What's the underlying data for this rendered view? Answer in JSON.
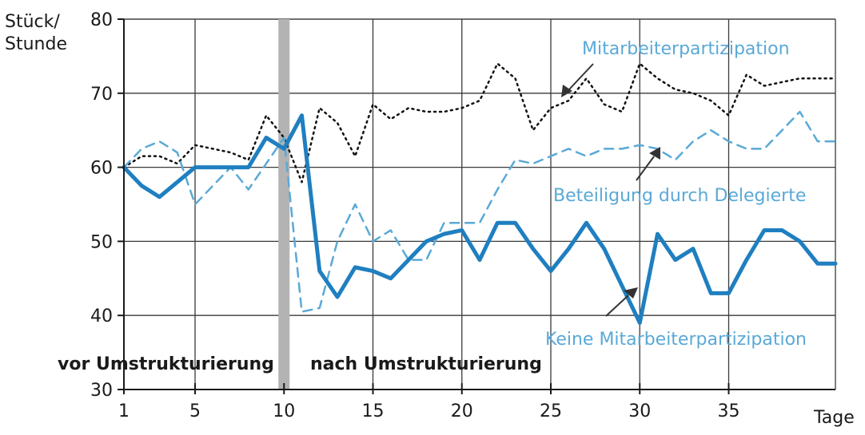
{
  "chart_data": {
    "type": "line",
    "ylabel": "Stück/ Stunde",
    "xlabel": "Tage",
    "xlim": [
      1,
      41
    ],
    "ylim": [
      30,
      80
    ],
    "xticks": [
      1,
      5,
      10,
      15,
      20,
      25,
      30,
      35
    ],
    "yticks": [
      30,
      40,
      50,
      60,
      70,
      80
    ],
    "grid": true,
    "divider_x": 10,
    "phases": {
      "before": "vor Umstrukturierung",
      "after": "nach Umstrukturierung"
    },
    "series": [
      {
        "name": "Mitarbeiterpartizipation",
        "color": "#111111",
        "style": "dotted",
        "x": [
          1,
          2,
          3,
          4,
          5,
          6,
          7,
          8,
          9,
          10,
          11,
          12,
          13,
          14,
          15,
          16,
          17,
          18,
          19,
          20,
          21,
          22,
          23,
          24,
          25,
          26,
          27,
          28,
          29,
          30,
          31,
          32,
          33,
          34,
          35,
          36,
          37,
          38,
          39,
          40,
          41
        ],
        "values": [
          60,
          61.5,
          61.5,
          60.5,
          63,
          62.5,
          62,
          61,
          67,
          64,
          58,
          68,
          66,
          61.5,
          68.5,
          66.5,
          68,
          67.5,
          67.5,
          68,
          69,
          74,
          72,
          65,
          68,
          69,
          72,
          68.5,
          67.5,
          74,
          72,
          70.5,
          70,
          69,
          67,
          72.5,
          71,
          71.5,
          72,
          72,
          72
        ]
      },
      {
        "name": "Beteiligung durch Delegierte",
        "color": "#5aa9d6",
        "style": "dashed",
        "x": [
          1,
          2,
          3,
          4,
          5,
          6,
          7,
          8,
          9,
          10,
          11,
          12,
          13,
          14,
          15,
          16,
          17,
          18,
          19,
          20,
          21,
          22,
          23,
          24,
          25,
          26,
          27,
          28,
          29,
          30,
          31,
          32,
          33,
          34,
          35,
          36,
          37,
          38,
          39,
          40,
          41
        ],
        "values": [
          60,
          62.5,
          63.5,
          62,
          55,
          57.5,
          60,
          57,
          60.5,
          64,
          40.5,
          41,
          50,
          55,
          50,
          51.5,
          47.5,
          47.5,
          52.5,
          52.5,
          52.5,
          57,
          61,
          60.5,
          61.5,
          62.5,
          61.5,
          62.5,
          62.5,
          63,
          62.5,
          61,
          63.5,
          65,
          63.5,
          62.5,
          62.5,
          65,
          67.5,
          63.5,
          63.5
        ]
      },
      {
        "name": "Keine Mitarbeiterpartizipation",
        "color": "#1f7fc0",
        "style": "solid",
        "x": [
          1,
          2,
          3,
          4,
          5,
          6,
          7,
          8,
          9,
          10,
          11,
          12,
          13,
          14,
          15,
          16,
          17,
          18,
          19,
          20,
          21,
          22,
          23,
          24,
          25,
          26,
          27,
          28,
          29,
          30,
          31,
          32,
          33,
          34,
          35,
          36,
          37,
          38,
          39,
          40,
          41
        ],
        "values": [
          60,
          57.5,
          56,
          58,
          60,
          60,
          60,
          60,
          64,
          62.5,
          67,
          46,
          42.5,
          46.5,
          46,
          45,
          47.5,
          50,
          51,
          51.5,
          47.5,
          52.5,
          52.5,
          49,
          46,
          49,
          52.5,
          49,
          44,
          39,
          51,
          47.5,
          49,
          43,
          43,
          47.5,
          51.5,
          51.5,
          50,
          47,
          47
        ]
      }
    ]
  }
}
